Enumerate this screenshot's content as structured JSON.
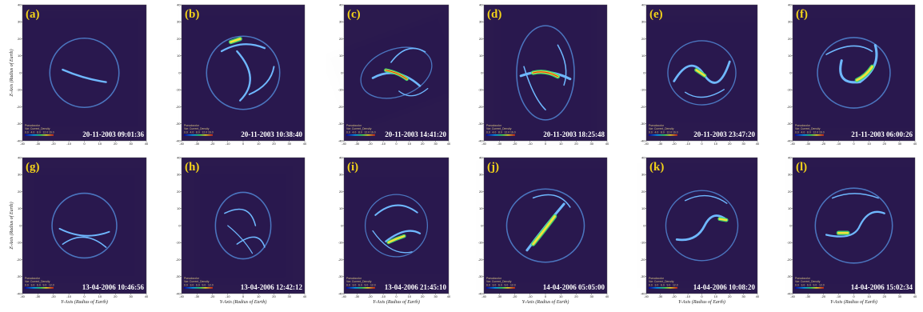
{
  "axes": {
    "xlabel": "Y-Axis (Radius of Earth)",
    "ylabel": "Z-Axis (Radius of Earth)",
    "ticks": [
      "-40",
      "-30",
      "-20",
      "-10",
      "0",
      "10",
      "20",
      "30",
      "40"
    ]
  },
  "legend": {
    "line1": "Pseudocolor",
    "line2": "Var: Current_Density",
    "row1_ticks": [
      "0.0",
      "4.0",
      "8.0",
      "12.0",
      "16.0"
    ],
    "row2_ticks": [
      "0.0",
      "3.0",
      "6.0",
      "9.0",
      "12.0"
    ]
  },
  "colors": {
    "background": "#2b1a4e",
    "ring": "#3a78d8",
    "peak": "#f5e23a",
    "label": "#f2d21a"
  },
  "panels": [
    {
      "label": "(a)",
      "timestamp": "20-11-2003 09:01:36"
    },
    {
      "label": "(b)",
      "timestamp": "20-11-2003 10:38:40"
    },
    {
      "label": "(c)",
      "timestamp": "20-11-2003 14:41:20"
    },
    {
      "label": "(d)",
      "timestamp": "20-11-2003 18:25:48"
    },
    {
      "label": "(e)",
      "timestamp": "20-11-2003 23:47:20"
    },
    {
      "label": "(f)",
      "timestamp": "21-11-2003 06:00:26"
    },
    {
      "label": "(g)",
      "timestamp": "13-04-2006 10:46:56"
    },
    {
      "label": "(h)",
      "timestamp": "13-04-2006 12:42:12"
    },
    {
      "label": "(i)",
      "timestamp": "13-04-2006 21:45:10"
    },
    {
      "label": "(j)",
      "timestamp": "14-04-2006 05:05:00"
    },
    {
      "label": "(k)",
      "timestamp": "14-04-2006 10:08:20"
    },
    {
      "label": "(l)",
      "timestamp": "14-04-2006 15:02:34"
    }
  ]
}
